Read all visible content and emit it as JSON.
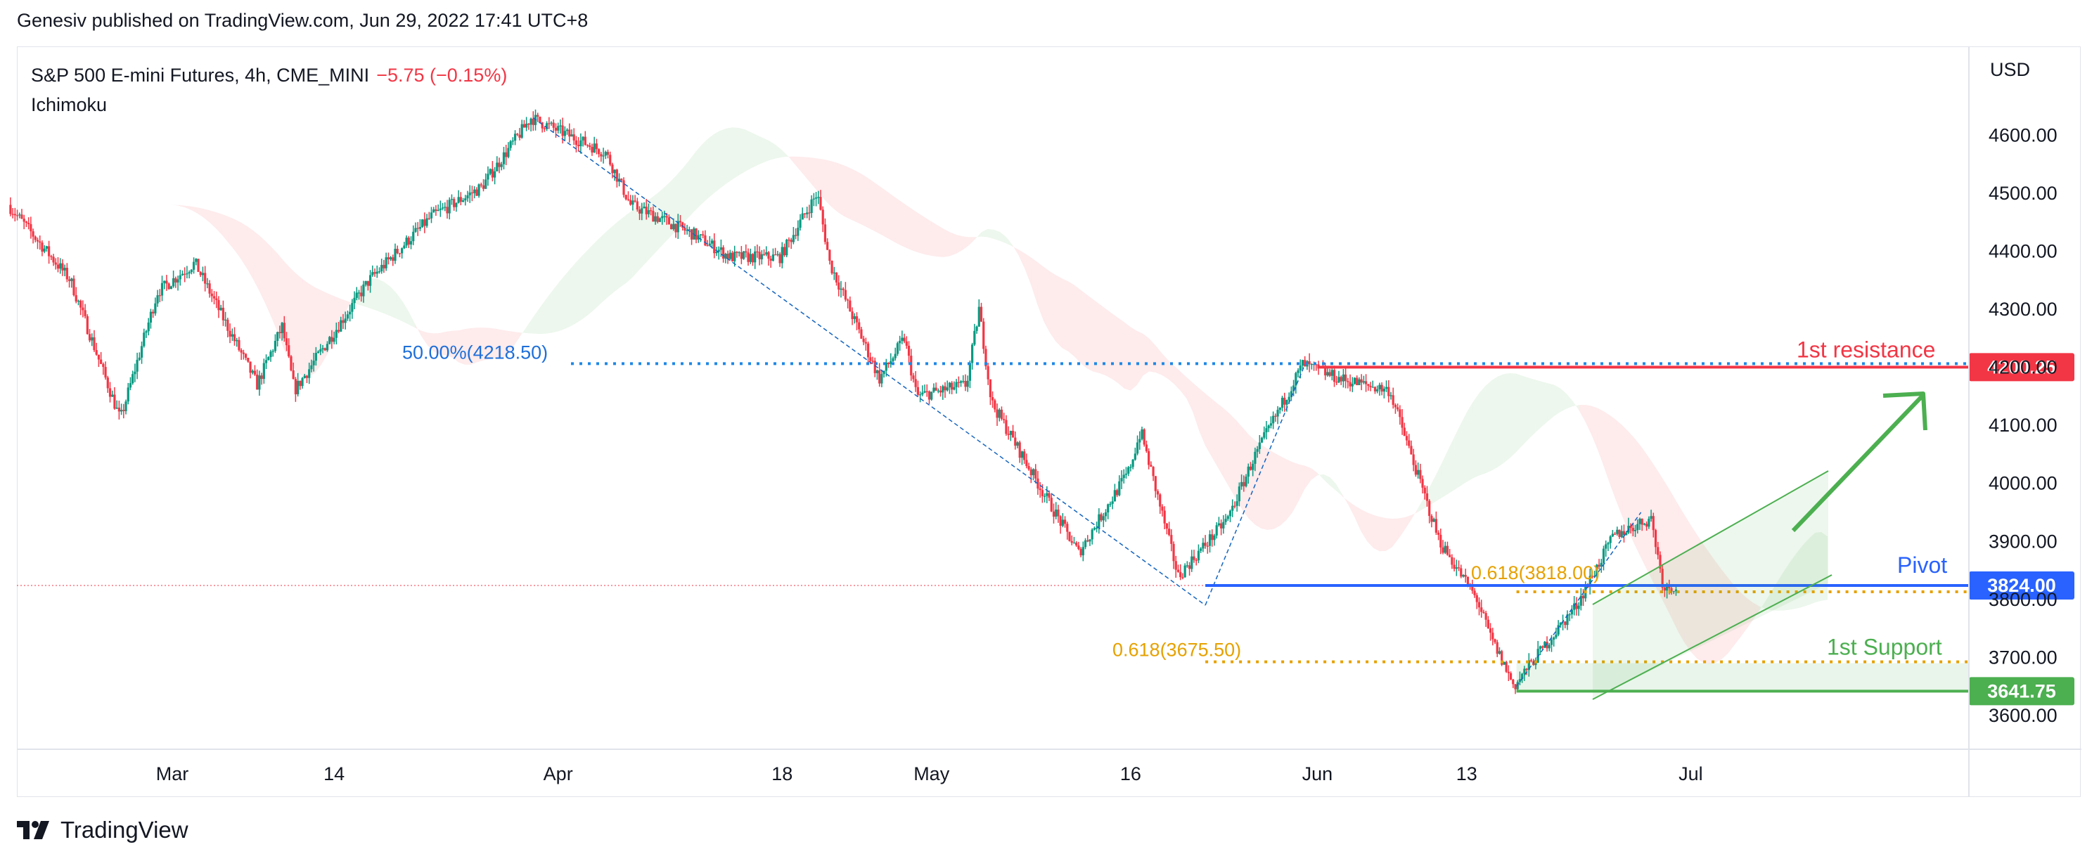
{
  "header": {
    "published": "Genesiv published on TradingView.com, Jun 29, 2022 17:41 UTC+8"
  },
  "legend": {
    "symbol": "S&P 500 E-mini Futures, 4h, CME_MINI",
    "change": "−5.75 (−0.15%)",
    "indicator": "Ichimoku"
  },
  "footer": {
    "brand": "TradingView"
  },
  "colors": {
    "up": "#089981",
    "down": "#f23645",
    "blue": "#2962ff",
    "resistance": "#f23645",
    "support": "#4caf50",
    "fib": "#e6a100",
    "trend": "#1565c0"
  },
  "chart_data": {
    "type": "candlestick",
    "currency": "USD",
    "y_ticks": [
      "4600.00",
      "4500.00",
      "4400.00",
      "4300.00",
      "4200.00",
      "4100.00",
      "4000.00",
      "3900.00",
      "3800.00",
      "3700.00",
      "3600.00"
    ],
    "x_ticks": [
      "Mar",
      "14",
      "Apr",
      "18",
      "May",
      "16",
      "Jun",
      "13",
      "Jul"
    ],
    "ylim": [
      3550,
      4700
    ],
    "price_anchors": [
      [
        "Feb 15",
        4480
      ],
      [
        "Feb 20",
        4350
      ],
      [
        "Feb 24",
        4110
      ],
      [
        "Feb 27",
        4330
      ],
      [
        "Mar 2",
        4380
      ],
      [
        "Mar 7",
        4170
      ],
      [
        "Mar 9",
        4270
      ],
      [
        "Mar 10",
        4160
      ],
      [
        "Mar 16",
        4350
      ],
      [
        "Mar 21",
        4460
      ],
      [
        "Mar 25",
        4510
      ],
      [
        "Mar 29",
        4630
      ],
      [
        "Apr 4",
        4570
      ],
      [
        "Apr 6",
        4480
      ],
      [
        "Apr 11",
        4430
      ],
      [
        "Apr 14",
        4390
      ],
      [
        "Apr 18",
        4390
      ],
      [
        "Apr 21",
        4500
      ],
      [
        "Apr 22",
        4380
      ],
      [
        "Apr 26",
        4180
      ],
      [
        "Apr 28",
        4250
      ],
      [
        "Apr 29",
        4150
      ],
      [
        "May 3",
        4170
      ],
      [
        "May 4",
        4300
      ],
      [
        "May 5",
        4140
      ],
      [
        "May 9",
        3990
      ],
      [
        "May 12",
        3880
      ],
      [
        "May 16",
        4020
      ],
      [
        "May 17",
        4090
      ],
      [
        "May 20",
        3840
      ],
      [
        "May 24",
        3940
      ],
      [
        "May 26",
        4040
      ],
      [
        "May 30",
        4205
      ],
      [
        "Jun 2",
        4180
      ],
      [
        "Jun 6",
        4160
      ],
      [
        "Jun 10",
        3900
      ],
      [
        "Jun 13",
        3800
      ],
      [
        "Jun 14",
        3740
      ],
      [
        "Jun 16",
        3650
      ],
      [
        "Jun 17",
        3680
      ],
      [
        "Jun 21",
        3790
      ],
      [
        "Jun 24",
        3910
      ],
      [
        "Jun 27",
        3940
      ],
      [
        "Jun 28",
        3820
      ],
      [
        "Jun 29",
        3824
      ]
    ],
    "annotations": {
      "resistance": {
        "label": "1st resistance",
        "value": "4200.25"
      },
      "pivot": {
        "label": "Pivot",
        "value": "3824.00"
      },
      "support": {
        "label": "1st Support",
        "value": "3641.75"
      },
      "fib_50": "50.00%(4218.50)",
      "fib_618_pivot": "0.618(3818.00)",
      "fib_618_support": "0.618(3675.50)"
    }
  }
}
